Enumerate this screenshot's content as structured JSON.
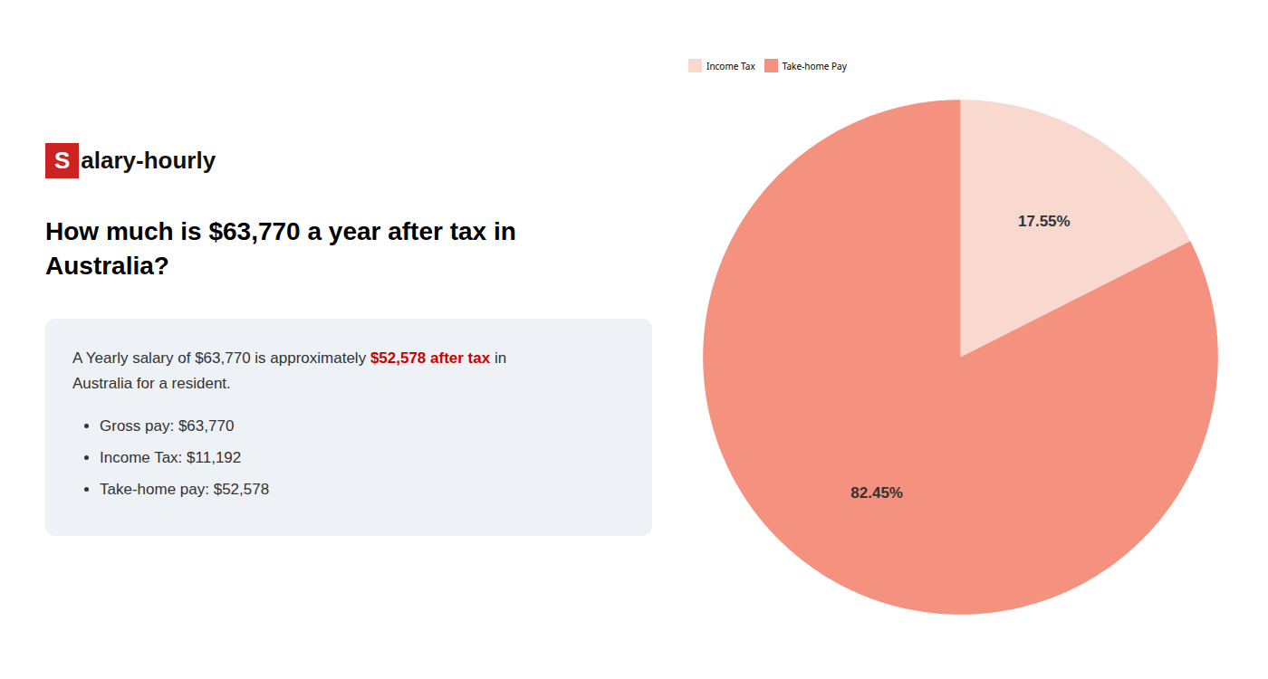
{
  "chart_data": {
    "type": "pie",
    "title": "How much is $63,770 a year after tax in Australia?",
    "annotations": [
      {
        "text": "S",
        "color": "#ffffff",
        "background": "#cc2222"
      },
      {
        "text": "alary-hourly",
        "color": "#111111"
      },
      {
        "text": "A Yearly salary of $63,770 is approximately ",
        "color": "#333333"
      },
      {
        "text": "$52,578 after tax",
        "color": "#cc0000"
      },
      {
        "text": " in",
        "color": "#333333"
      },
      {
        "text": "Australia for a resident.",
        "color": "#333333"
      },
      {
        "text": "Gross pay: $63,770",
        "color": "#333333"
      },
      {
        "text": "Income Tax: $11,192",
        "color": "#333333"
      },
      {
        "text": "Take-home pay: $52,578",
        "color": "#333333"
      }
    ],
    "categories": [
      "Income Tax",
      "Take-home Pay"
    ],
    "values": [
      17.55,
      82.45
    ],
    "value_labels": [
      "17.55%",
      "82.45%"
    ],
    "colors": [
      "#f9d9cf",
      "#f4917f"
    ],
    "data_labels": true,
    "legend": "top"
  }
}
